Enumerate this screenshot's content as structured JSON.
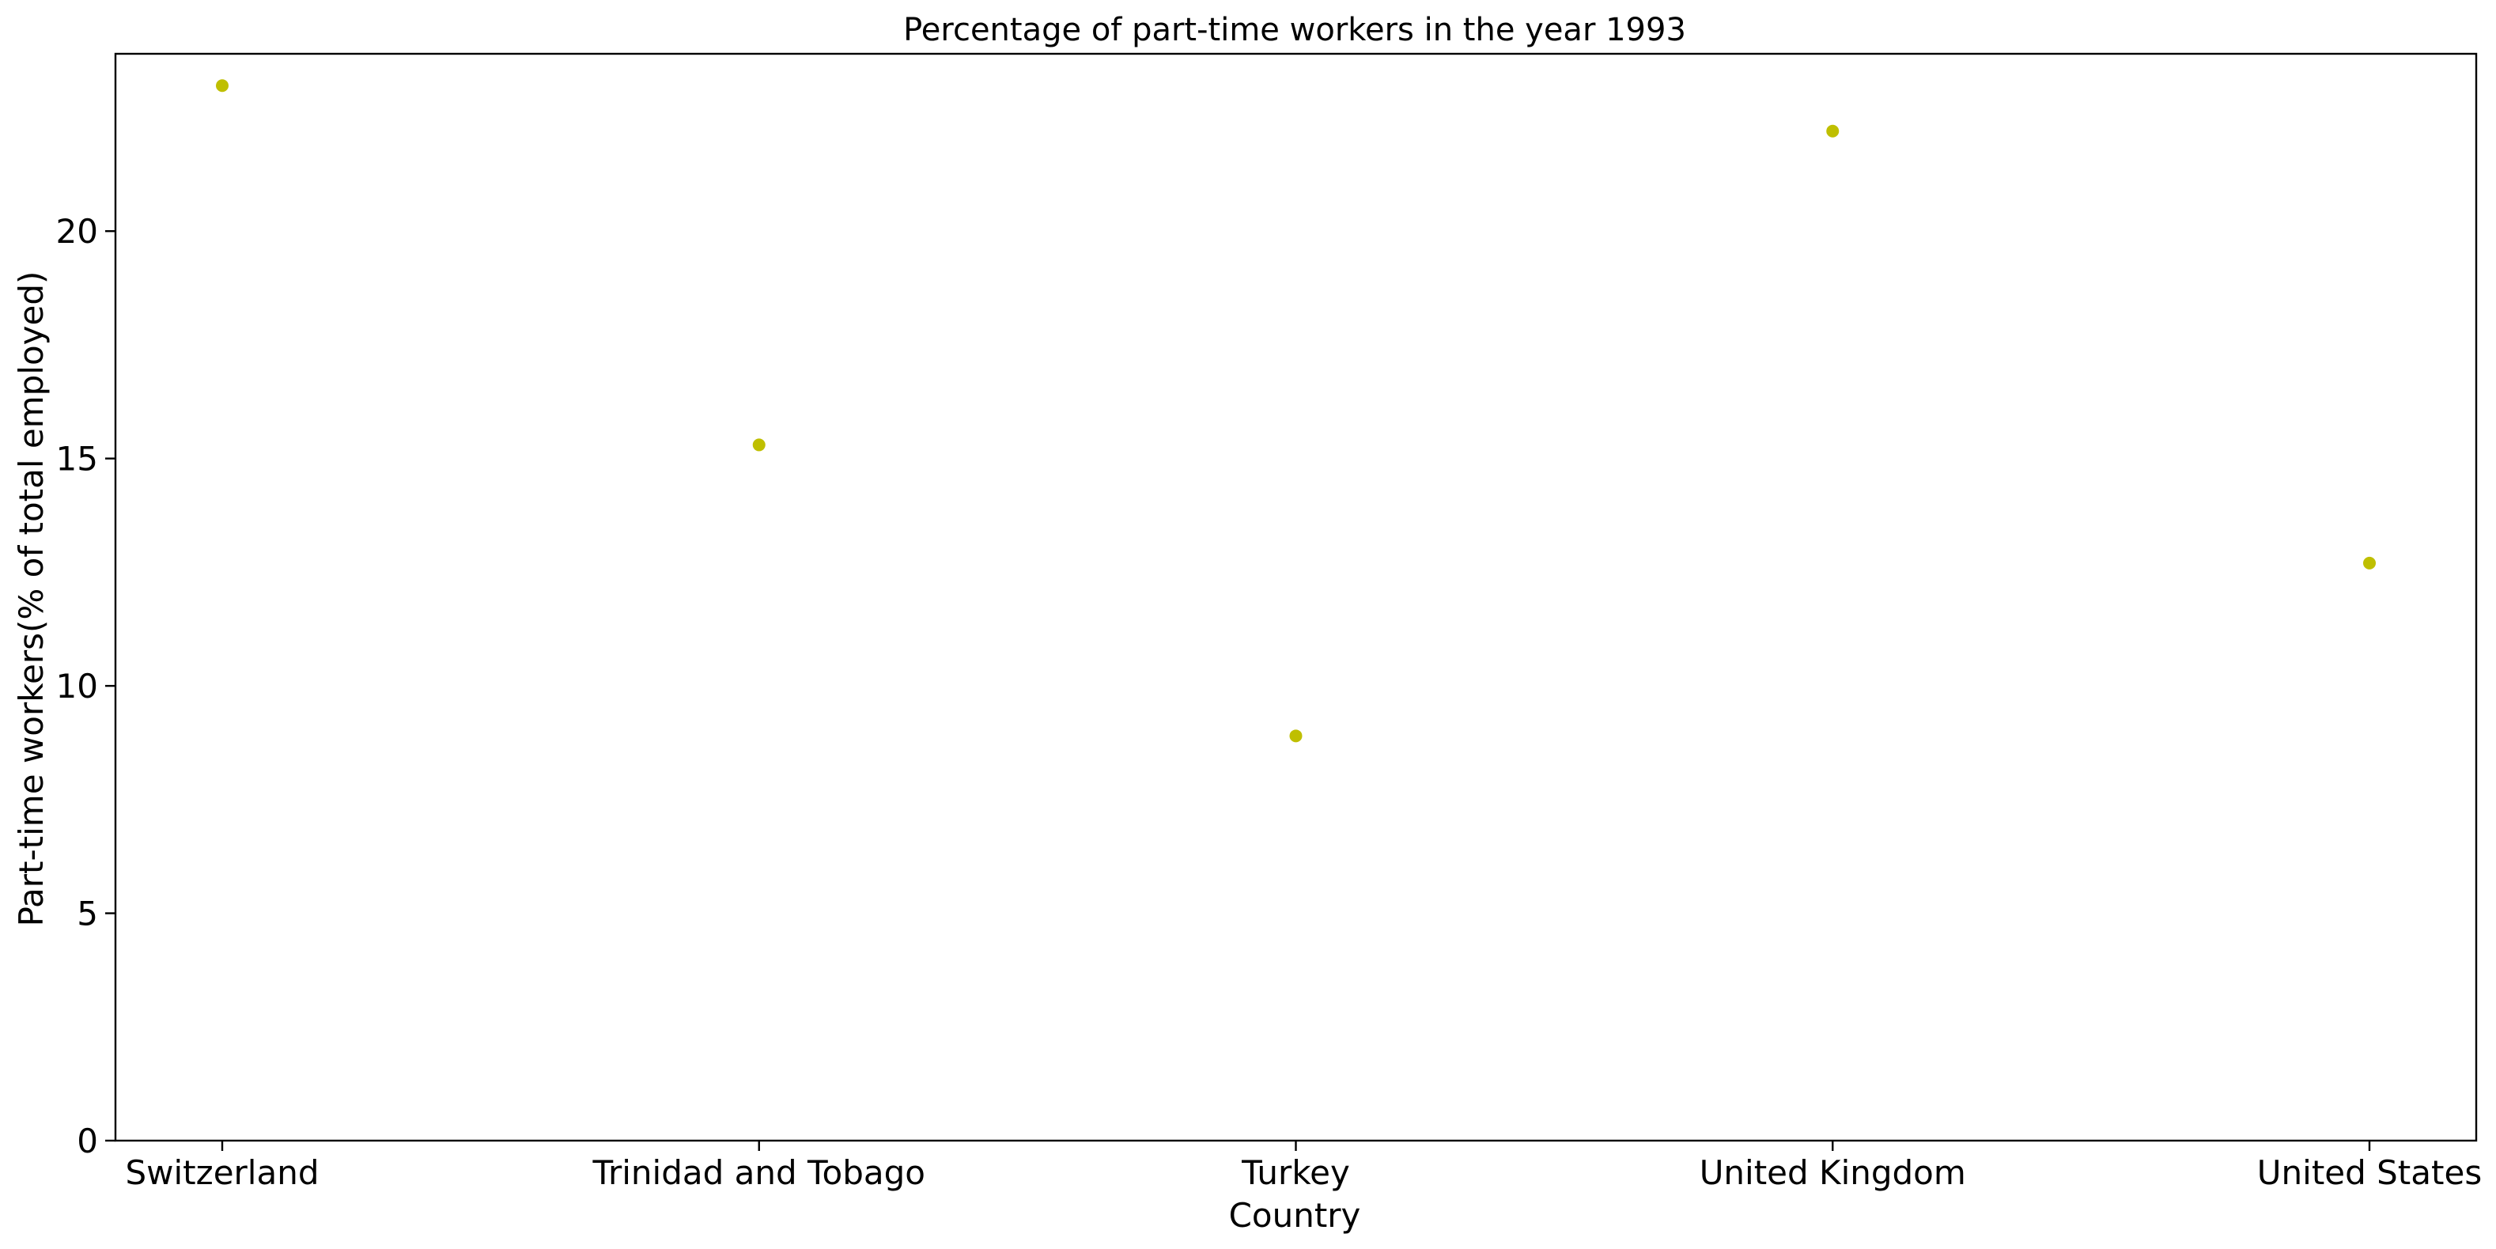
{
  "chart_data": {
    "type": "scatter",
    "title": "Percentage of part-time workers in the year 1993",
    "xlabel": "Country",
    "ylabel": "Part-time workers(% of total employed)",
    "categories": [
      "Switzerland",
      "Trinidad and Tobago",
      "Turkey",
      "United Kingdom",
      "United States"
    ],
    "series": [
      {
        "values": [
          23.2,
          15.3,
          8.9,
          22.2,
          12.7
        ],
        "color": "#bfbf00"
      }
    ],
    "ylim": [
      0,
      23.9
    ],
    "yticks": [
      0,
      5,
      10,
      15,
      20
    ],
    "grid": false,
    "legend": "none"
  }
}
